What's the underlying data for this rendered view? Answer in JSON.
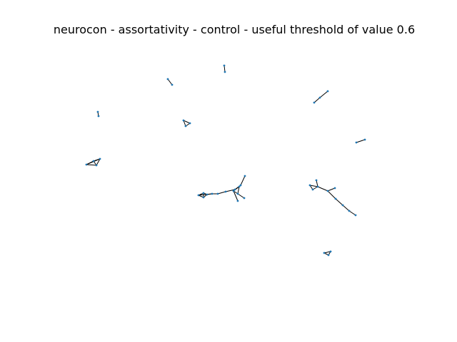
{
  "title": "neurocon - assortativity - control - useful threshold of value 0.6",
  "colors": {
    "edge": "#000000",
    "node": "#1f77b4"
  }
}
